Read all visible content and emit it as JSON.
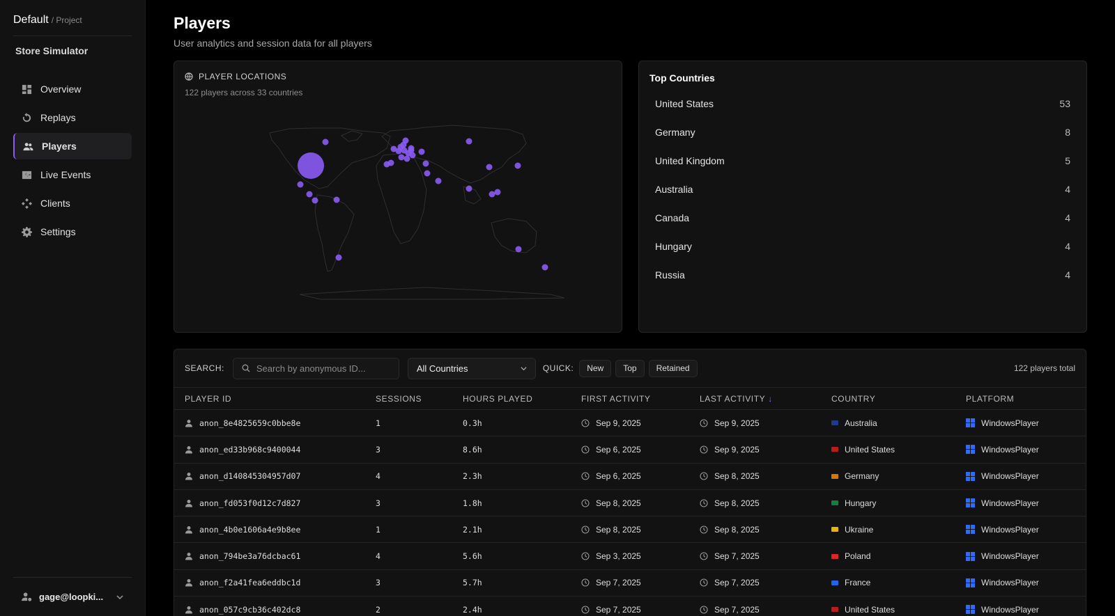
{
  "project": {
    "name": "Default",
    "label": "/ Project"
  },
  "app_name": "Store Simulator",
  "nav": [
    {
      "label": "Overview",
      "icon": "dashboard-icon"
    },
    {
      "label": "Replays",
      "icon": "replay-icon"
    },
    {
      "label": "Players",
      "icon": "users-icon",
      "active": true
    },
    {
      "label": "Live Events",
      "icon": "pulse-icon"
    },
    {
      "label": "Clients",
      "icon": "clients-icon"
    },
    {
      "label": "Settings",
      "icon": "gear-icon"
    }
  ],
  "user": {
    "email": "gage@loopki..."
  },
  "page": {
    "title": "Players",
    "subtitle": "User analytics and session data for all players"
  },
  "map": {
    "title": "PLAYER LOCATIONS",
    "summary": "122 players across 33 countries",
    "accent": "#8b5cf6"
  },
  "top_countries": {
    "title": "Top Countries",
    "items": [
      {
        "name": "United States",
        "count": "53"
      },
      {
        "name": "Germany",
        "count": "8"
      },
      {
        "name": "United Kingdom",
        "count": "5"
      },
      {
        "name": "Australia",
        "count": "4"
      },
      {
        "name": "Canada",
        "count": "4"
      },
      {
        "name": "Hungary",
        "count": "4"
      },
      {
        "name": "Russia",
        "count": "4"
      }
    ]
  },
  "toolbar": {
    "search_label": "SEARCH:",
    "search_placeholder": "Search by anonymous ID...",
    "country_select": "All Countries",
    "quick_label": "QUICK:",
    "quick_buttons": [
      "New",
      "Top",
      "Retained"
    ],
    "total": "122 players total"
  },
  "table": {
    "columns": [
      "PLAYER ID",
      "SESSIONS",
      "HOURS PLAYED",
      "FIRST ACTIVITY",
      "LAST ACTIVITY",
      "COUNTRY",
      "PLATFORM"
    ],
    "sort_indicator": "↓",
    "rows": [
      {
        "id": "anon_8e4825659c0bbe8e",
        "sessions": "1",
        "hours": "0.3h",
        "first": "Sep 9, 2025",
        "last": "Sep 9, 2025",
        "country": "Australia",
        "flag": "#1e3a8a",
        "platform": "WindowsPlayer"
      },
      {
        "id": "anon_ed33b968c9400044",
        "sessions": "3",
        "hours": "8.6h",
        "first": "Sep 6, 2025",
        "last": "Sep 9, 2025",
        "country": "United States",
        "flag": "#b91c1c",
        "platform": "WindowsPlayer"
      },
      {
        "id": "anon_d140845304957d07",
        "sessions": "4",
        "hours": "2.3h",
        "first": "Sep 6, 2025",
        "last": "Sep 8, 2025",
        "country": "Germany",
        "flag": "#d97706",
        "platform": "WindowsPlayer"
      },
      {
        "id": "anon_fd053f0d12c7d827",
        "sessions": "3",
        "hours": "1.8h",
        "first": "Sep 8, 2025",
        "last": "Sep 8, 2025",
        "country": "Hungary",
        "flag": "#15803d",
        "platform": "WindowsPlayer"
      },
      {
        "id": "anon_4b0e1606a4e9b8ee",
        "sessions": "1",
        "hours": "2.1h",
        "first": "Sep 8, 2025",
        "last": "Sep 8, 2025",
        "country": "Ukraine",
        "flag": "#eab308",
        "platform": "WindowsPlayer"
      },
      {
        "id": "anon_794be3a76dcbac61",
        "sessions": "4",
        "hours": "5.6h",
        "first": "Sep 3, 2025",
        "last": "Sep 7, 2025",
        "country": "Poland",
        "flag": "#dc2626",
        "platform": "WindowsPlayer"
      },
      {
        "id": "anon_f2a41fea6eddbc1d",
        "sessions": "3",
        "hours": "5.7h",
        "first": "Sep 7, 2025",
        "last": "Sep 7, 2025",
        "country": "France",
        "flag": "#2563eb",
        "platform": "WindowsPlayer"
      },
      {
        "id": "anon_057c9cb36c402dc8",
        "sessions": "2",
        "hours": "2.4h",
        "first": "Sep 7, 2025",
        "last": "Sep 7, 2025",
        "country": "United States",
        "flag": "#b91c1c",
        "platform": "WindowsPlayer"
      }
    ]
  }
}
